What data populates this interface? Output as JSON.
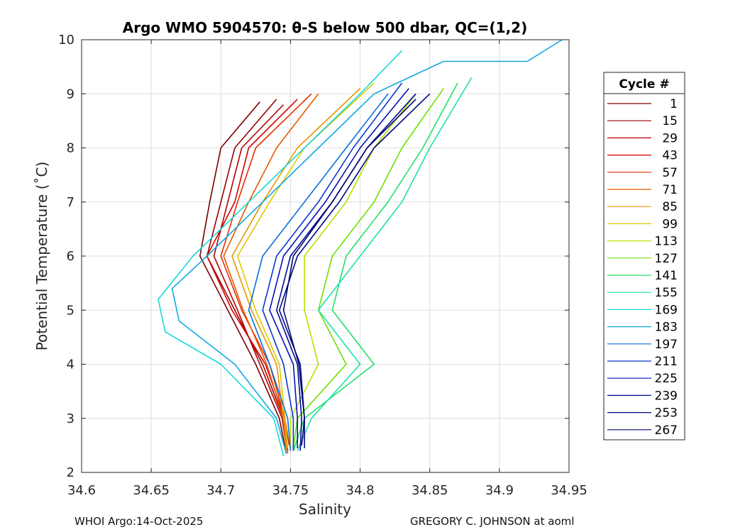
{
  "chart_data": {
    "type": "line",
    "title": "Argo WMO 5904570: θ-S below 500 dbar,  QC=(1,2)",
    "xlabel": "Salinity",
    "ylabel": "Potential Temperature (˚C)",
    "xlim": [
      34.6,
      34.95
    ],
    "ylim": [
      2,
      10
    ],
    "xticks": [
      34.6,
      34.65,
      34.7,
      34.75,
      34.8,
      34.85,
      34.9,
      34.95
    ],
    "xtick_labels": [
      "34.6",
      "34.65",
      "34.7",
      "34.75",
      "34.8",
      "34.85",
      "34.9",
      "34.95"
    ],
    "yticks": [
      2,
      3,
      4,
      5,
      6,
      7,
      8,
      9,
      10
    ],
    "ytick_labels": [
      "2",
      "3",
      "4",
      "5",
      "6",
      "7",
      "8",
      "9",
      "10"
    ],
    "grid": true,
    "legend_title": "Cycle #",
    "legend_position": "outside-right",
    "series": [
      {
        "name": "1",
        "color": "#7a0000",
        "points": [
          [
            34.747,
            2.35
          ],
          [
            34.742,
            3.0
          ],
          [
            34.725,
            4.0
          ],
          [
            34.705,
            5.0
          ],
          [
            34.685,
            6.0
          ],
          [
            34.692,
            7.0
          ],
          [
            34.7,
            8.0
          ],
          [
            34.728,
            8.85
          ]
        ]
      },
      {
        "name": "15",
        "color": "#990000",
        "points": [
          [
            34.748,
            2.4
          ],
          [
            34.745,
            3.0
          ],
          [
            34.73,
            4.0
          ],
          [
            34.71,
            5.0
          ],
          [
            34.69,
            6.0
          ],
          [
            34.7,
            7.0
          ],
          [
            34.71,
            8.0
          ],
          [
            34.74,
            8.9
          ]
        ]
      },
      {
        "name": "29",
        "color": "#b80000",
        "points": [
          [
            34.747,
            2.45
          ],
          [
            34.744,
            3.0
          ],
          [
            34.728,
            4.0
          ],
          [
            34.712,
            5.0
          ],
          [
            34.695,
            6.0
          ],
          [
            34.705,
            7.0
          ],
          [
            34.715,
            8.0
          ],
          [
            34.745,
            8.8
          ]
        ]
      },
      {
        "name": "43",
        "color": "#d40000",
        "points": [
          [
            34.748,
            2.4
          ],
          [
            34.746,
            3.0
          ],
          [
            34.732,
            4.0
          ],
          [
            34.708,
            5.0
          ],
          [
            34.69,
            6.0
          ],
          [
            34.71,
            7.0
          ],
          [
            34.72,
            8.0
          ],
          [
            34.755,
            8.9
          ]
        ]
      },
      {
        "name": "57",
        "color": "#e62c00",
        "points": [
          [
            34.749,
            2.5
          ],
          [
            34.746,
            3.0
          ],
          [
            34.735,
            4.0
          ],
          [
            34.715,
            5.0
          ],
          [
            34.7,
            6.0
          ],
          [
            34.712,
            7.0
          ],
          [
            34.725,
            8.0
          ],
          [
            34.765,
            9.0
          ]
        ]
      },
      {
        "name": "71",
        "color": "#e65a00",
        "points": [
          [
            34.748,
            2.35
          ],
          [
            34.745,
            3.0
          ],
          [
            34.733,
            4.0
          ],
          [
            34.716,
            5.0
          ],
          [
            34.702,
            6.0
          ],
          [
            34.72,
            7.0
          ],
          [
            34.74,
            8.0
          ],
          [
            34.77,
            9.0
          ]
        ]
      },
      {
        "name": "85",
        "color": "#e69500",
        "points": [
          [
            34.747,
            2.4
          ],
          [
            34.745,
            3.0
          ],
          [
            34.74,
            4.0
          ],
          [
            34.722,
            5.0
          ],
          [
            34.708,
            6.0
          ],
          [
            34.73,
            7.0
          ],
          [
            34.755,
            8.0
          ],
          [
            34.8,
            9.1
          ]
        ]
      },
      {
        "name": "99",
        "color": "#e0c800",
        "points": [
          [
            34.748,
            2.45
          ],
          [
            34.746,
            3.0
          ],
          [
            34.742,
            4.0
          ],
          [
            34.725,
            5.0
          ],
          [
            34.712,
            6.0
          ],
          [
            34.735,
            7.0
          ],
          [
            34.76,
            8.0
          ],
          [
            34.81,
            9.2
          ]
        ]
      },
      {
        "name": "113",
        "color": "#b8e000",
        "points": [
          [
            34.75,
            2.4
          ],
          [
            34.75,
            3.0
          ],
          [
            34.77,
            4.0
          ],
          [
            34.76,
            5.0
          ],
          [
            34.76,
            6.0
          ],
          [
            34.79,
            7.0
          ],
          [
            34.81,
            8.0
          ],
          [
            34.84,
            9.0
          ]
        ]
      },
      {
        "name": "127",
        "color": "#6ee000",
        "points": [
          [
            34.752,
            2.45
          ],
          [
            34.755,
            3.0
          ],
          [
            34.79,
            4.0
          ],
          [
            34.77,
            5.0
          ],
          [
            34.78,
            6.0
          ],
          [
            34.81,
            7.0
          ],
          [
            34.83,
            8.0
          ],
          [
            34.86,
            9.1
          ]
        ]
      },
      {
        "name": "141",
        "color": "#22e066",
        "points": [
          [
            34.752,
            2.4
          ],
          [
            34.76,
            3.0
          ],
          [
            34.81,
            4.0
          ],
          [
            34.78,
            5.0
          ],
          [
            34.79,
            6.0
          ],
          [
            34.82,
            7.0
          ],
          [
            34.845,
            8.0
          ],
          [
            34.87,
            9.2
          ]
        ]
      },
      {
        "name": "155",
        "color": "#1ee0a8",
        "points": [
          [
            34.755,
            2.4
          ],
          [
            34.765,
            3.0
          ],
          [
            34.8,
            4.0
          ],
          [
            34.77,
            5.0
          ],
          [
            34.8,
            6.0
          ],
          [
            34.83,
            7.0
          ],
          [
            34.85,
            8.0
          ],
          [
            34.88,
            9.3
          ]
        ]
      },
      {
        "name": "169",
        "color": "#18d8d8",
        "points": [
          [
            34.745,
            2.3
          ],
          [
            34.738,
            3.0
          ],
          [
            34.7,
            4.0
          ],
          [
            34.66,
            4.6
          ],
          [
            34.655,
            5.2
          ],
          [
            34.68,
            6.0
          ],
          [
            34.72,
            7.0
          ],
          [
            34.76,
            8.0
          ],
          [
            34.8,
            9.0
          ],
          [
            34.83,
            9.8
          ]
        ]
      },
      {
        "name": "183",
        "color": "#12a8e0",
        "points": [
          [
            34.747,
            2.35
          ],
          [
            34.74,
            3.0
          ],
          [
            34.71,
            4.0
          ],
          [
            34.67,
            4.8
          ],
          [
            34.665,
            5.4
          ],
          [
            34.69,
            6.0
          ],
          [
            34.73,
            7.0
          ],
          [
            34.77,
            8.0
          ],
          [
            34.81,
            9.0
          ],
          [
            34.86,
            9.6
          ],
          [
            34.92,
            9.6
          ],
          [
            34.945,
            10.0
          ]
        ]
      },
      {
        "name": "197",
        "color": "#0a70d8",
        "points": [
          [
            34.75,
            2.4
          ],
          [
            34.748,
            3.0
          ],
          [
            34.735,
            4.0
          ],
          [
            34.72,
            5.0
          ],
          [
            34.73,
            6.0
          ],
          [
            34.76,
            7.0
          ],
          [
            34.79,
            8.0
          ],
          [
            34.82,
            9.0
          ]
        ]
      },
      {
        "name": "211",
        "color": "#0838d0",
        "points": [
          [
            34.752,
            2.4
          ],
          [
            34.752,
            3.0
          ],
          [
            34.745,
            4.0
          ],
          [
            34.73,
            5.0
          ],
          [
            34.74,
            6.0
          ],
          [
            34.77,
            7.0
          ],
          [
            34.795,
            8.0
          ],
          [
            34.83,
            9.2
          ]
        ]
      },
      {
        "name": "225",
        "color": "#0410b8",
        "points": [
          [
            34.755,
            2.45
          ],
          [
            34.755,
            3.0
          ],
          [
            34.752,
            4.0
          ],
          [
            34.735,
            5.0
          ],
          [
            34.745,
            6.0
          ],
          [
            34.775,
            7.0
          ],
          [
            34.8,
            8.0
          ],
          [
            34.835,
            9.1
          ]
        ]
      },
      {
        "name": "239",
        "color": "#000c98",
        "points": [
          [
            34.757,
            2.4
          ],
          [
            34.758,
            3.0
          ],
          [
            34.755,
            4.0
          ],
          [
            34.74,
            5.0
          ],
          [
            34.75,
            6.0
          ],
          [
            34.78,
            7.0
          ],
          [
            34.805,
            8.0
          ],
          [
            34.84,
            9.0
          ]
        ]
      },
      {
        "name": "253",
        "color": "#000a80",
        "points": [
          [
            34.76,
            2.45
          ],
          [
            34.76,
            3.0
          ],
          [
            34.757,
            4.0
          ],
          [
            34.742,
            5.0
          ],
          [
            34.755,
            6.0
          ],
          [
            34.785,
            7.0
          ],
          [
            34.81,
            8.0
          ],
          [
            34.85,
            9.0
          ]
        ]
      },
      {
        "name": "267",
        "color": "#000870",
        "points": [
          [
            34.758,
            2.5
          ],
          [
            34.76,
            3.0
          ],
          [
            34.756,
            4.0
          ],
          [
            34.745,
            5.0
          ],
          [
            34.752,
            6.0
          ],
          [
            34.78,
            7.0
          ],
          [
            34.805,
            8.0
          ],
          [
            34.84,
            8.9
          ]
        ]
      }
    ]
  },
  "footer": {
    "left": "WHOI Argo:14-Oct-2025",
    "right": "GREGORY C. JOHNSON at aoml"
  }
}
